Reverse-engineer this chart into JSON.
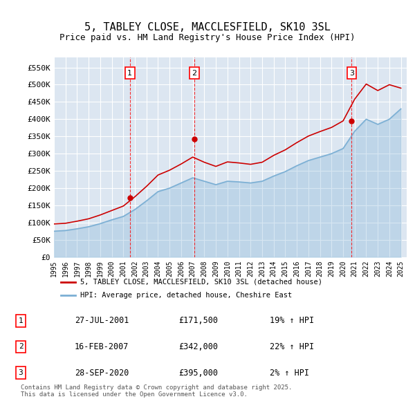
{
  "title_line1": "5, TABLEY CLOSE, MACCLESFIELD, SK10 3SL",
  "title_line2": "Price paid vs. HM Land Registry's House Price Index (HPI)",
  "ylabel": "",
  "background_color": "#ffffff",
  "plot_bg_color": "#dce6f1",
  "grid_color": "#ffffff",
  "sale_color": "#cc0000",
  "hpi_color": "#7bafd4",
  "sale_line_color": "#cc0000",
  "hpi_line_color": "#6699cc",
  "ylim": [
    0,
    580000
  ],
  "yticks": [
    0,
    50000,
    100000,
    150000,
    200000,
    250000,
    300000,
    350000,
    400000,
    450000,
    500000,
    550000
  ],
  "ytick_labels": [
    "£0",
    "£50K",
    "£100K",
    "£150K",
    "£200K",
    "£250K",
    "£300K",
    "£350K",
    "£400K",
    "£450K",
    "£500K",
    "£550K"
  ],
  "sale_dates": [
    "2001-07-27",
    "2007-02-16",
    "2020-09-28"
  ],
  "sale_prices": [
    171500,
    342000,
    395000
  ],
  "sale_labels": [
    "1",
    "2",
    "3"
  ],
  "sale_pct": [
    "19%",
    "22%",
    "2%"
  ],
  "sale_date_labels": [
    "27-JUL-2001",
    "16-FEB-2007",
    "28-SEP-2020"
  ],
  "sale_price_labels": [
    "£171,500",
    "£342,000",
    "£395,000"
  ],
  "legend_sale": "5, TABLEY CLOSE, MACCLESFIELD, SK10 3SL (detached house)",
  "legend_hpi": "HPI: Average price, detached house, Cheshire East",
  "footer": "Contains HM Land Registry data © Crown copyright and database right 2025.\nThis data is licensed under the Open Government Licence v3.0.",
  "hpi_data": {
    "years": [
      1995,
      1996,
      1997,
      1998,
      1999,
      2000,
      2001,
      2002,
      2003,
      2004,
      2005,
      2006,
      2007,
      2008,
      2009,
      2010,
      2011,
      2012,
      2013,
      2014,
      2015,
      2016,
      2017,
      2018,
      2019,
      2020,
      2021,
      2022,
      2023,
      2024,
      2025
    ],
    "values": [
      75000,
      77000,
      82000,
      88000,
      97000,
      108000,
      118000,
      138000,
      163000,
      190000,
      200000,
      215000,
      230000,
      220000,
      210000,
      220000,
      218000,
      215000,
      220000,
      235000,
      248000,
      265000,
      280000,
      290000,
      300000,
      315000,
      365000,
      400000,
      385000,
      400000,
      430000
    ]
  },
  "sale_hpi_data": {
    "years": [
      1995,
      1996,
      1997,
      1998,
      1999,
      2000,
      2001,
      2002,
      2003,
      2004,
      2005,
      2006,
      2007,
      2008,
      2009,
      2010,
      2011,
      2012,
      2013,
      2014,
      2015,
      2016,
      2017,
      2018,
      2019,
      2020,
      2021,
      2022,
      2023,
      2024,
      2025
    ],
    "values": [
      96000,
      98000,
      104000,
      111000,
      122000,
      135000,
      148000,
      175000,
      205000,
      238000,
      252000,
      270000,
      290000,
      275000,
      263000,
      276000,
      273000,
      269000,
      275000,
      295000,
      311000,
      332000,
      351000,
      364000,
      376000,
      395000,
      458000,
      502000,
      483000,
      500000,
      490000
    ]
  }
}
